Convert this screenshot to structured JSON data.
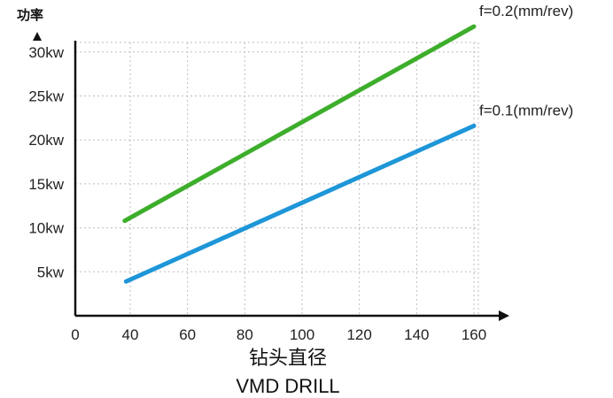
{
  "chart_data": {
    "type": "line",
    "ylabel": "功率",
    "xlabel": "钻头直径",
    "xlabel2": "VMD DRILL",
    "xlim": [
      0,
      160
    ],
    "ylim": [
      0,
      35
    ],
    "x_ticks": [
      0,
      40,
      60,
      80,
      100,
      120,
      140,
      160
    ],
    "x_tick_labels": [
      "0",
      "40",
      "60",
      "80",
      "100",
      "120",
      "140",
      "160"
    ],
    "y_ticks": [
      5,
      10,
      15,
      20,
      25,
      30
    ],
    "y_tick_labels": [
      "5kw",
      "10kw",
      "15kw",
      "20kw",
      "25kw",
      "30kw"
    ],
    "grid": true,
    "series": [
      {
        "name": "f=0.2(mm/rev)",
        "color": "#3dae2b",
        "x": [
          36,
          160
        ],
        "y": [
          10.8,
          32.9
        ]
      },
      {
        "name": "f=0.1(mm/rev)",
        "color": "#1e96d8",
        "x": [
          37,
          160
        ],
        "y": [
          3.9,
          21.6
        ]
      }
    ]
  }
}
